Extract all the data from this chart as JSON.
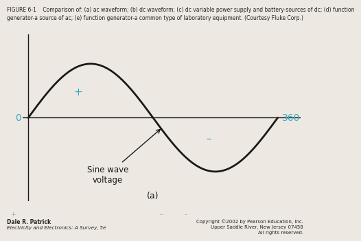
{
  "title_line1": "FIGURE 6-1    Comparison of: (a) ac waveform; (b) dc waveform; (c) dc variable power supply and battery-sources of dc; (d) function",
  "title_line2": "generator-a source of ac; (e) function generator-a common type of laboratory equipment. (Courtesy Fluke Corp.)",
  "sine_color": "#1a1a1a",
  "axis_color": "#1a1a1a",
  "label_color_cyan": "#3aa8c1",
  "label_zero": "0",
  "label_360": "360",
  "plus_label": "+",
  "minus_label": "–",
  "annotation_text": "Sine wave\nvoltage",
  "subfig_label": "(a)",
  "bottom_left_bold": "Dale R. Patrick",
  "bottom_left_italic": "Electricity and Electronics: A Survey, 5e",
  "bottom_right_line1": "Copyright ©2002 by Pearson Education, Inc.",
  "bottom_right_line2": "Upper Saddle River, New Jersey 07458",
  "bottom_right_line3": "All rights reserved.",
  "bottom_symbols_plus": "+",
  "bottom_symbols_minus1": "–",
  "bottom_symbols_minus2": "–",
  "sine_lw": 2.0,
  "bg_color": "#ede9e2"
}
